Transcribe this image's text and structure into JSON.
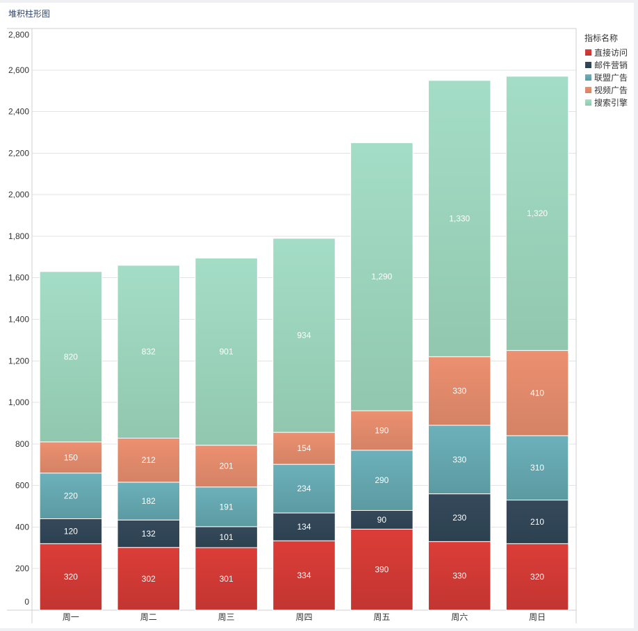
{
  "chart_data": {
    "type": "bar",
    "stacked": true,
    "title": "堆积柱形图",
    "xlabel": "",
    "ylabel": "",
    "categories": [
      "周一",
      "周二",
      "周三",
      "周四",
      "周五",
      "周六",
      "周日"
    ],
    "series": [
      {
        "name": "直接访问",
        "values": [
          320,
          302,
          301,
          334,
          390,
          330,
          320
        ],
        "color": "#c23531",
        "color_top": "#dc3d38"
      },
      {
        "name": "邮件营销",
        "values": [
          120,
          132,
          101,
          134,
          90,
          230,
          210
        ],
        "color": "#2c4150",
        "color_top": "#35495b"
      },
      {
        "name": "联盟广告",
        "values": [
          220,
          182,
          191,
          234,
          290,
          330,
          310
        ],
        "color": "#5c9aa2",
        "color_top": "#6cb1ba"
      },
      {
        "name": "视频广告",
        "values": [
          150,
          212,
          201,
          154,
          190,
          330,
          410
        ],
        "color": "#d48265",
        "color_top": "#ec9070"
      },
      {
        "name": "搜索引擎",
        "values": [
          820,
          832,
          901,
          934,
          1290,
          1330,
          1320
        ],
        "color": "#91c7ae",
        "color_top": "#a4ddc7"
      }
    ],
    "ylim": [
      0,
      2800
    ],
    "yticks": [
      0,
      200,
      400,
      600,
      800,
      1000,
      1200,
      1400,
      1600,
      1800,
      2000,
      2200,
      2400,
      2600,
      2800
    ],
    "grid": true,
    "data_labels": true,
    "legend_title": "指标名称",
    "legend_position": "right"
  }
}
